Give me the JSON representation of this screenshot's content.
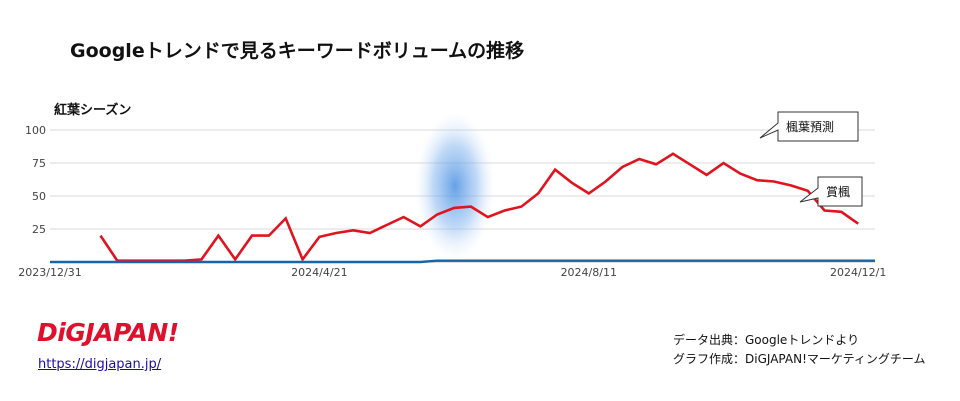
{
  "title": "Googleトレンドで見るキーワードボリュームの推移",
  "subtitle": "紅葉シーズン",
  "logo_text": "DiGJAPAN!",
  "link_text": "https://digjapan.jp/",
  "credits": {
    "source": "データ出典：Googleトレンドより",
    "made_by": "グラフ作成：DiGJAPAN!マーケティングチーム"
  },
  "callouts": {
    "momiji_yosoku": "楓葉預測",
    "shoufuu": "賞楓"
  },
  "colors": {
    "series_red": "#e0141e",
    "series_blue": "#1565a8",
    "highlight": "#4a90e2"
  },
  "chart_data": {
    "type": "line",
    "x_tick_labels": [
      "2023/12/31",
      "2024/4/21",
      "2024/8/11",
      "2024/12/1"
    ],
    "y_tick_labels": [
      "25",
      "50",
      "75",
      "100"
    ],
    "ylim": [
      0,
      100
    ],
    "grid": true,
    "x_range": [
      0,
      49
    ],
    "x_ticks": [
      0,
      16,
      32,
      48
    ],
    "series": [
      {
        "name": "楓葉預測",
        "color": "#e0141e",
        "x": [
          3,
          4,
          5,
          6,
          7,
          8,
          9,
          10,
          11,
          12,
          13,
          14,
          15,
          16,
          17,
          18,
          19,
          20,
          21,
          22,
          23,
          24,
          25,
          26,
          27,
          28,
          29,
          30,
          31,
          32,
          33,
          34,
          35,
          36,
          37,
          38,
          39,
          40,
          41,
          42,
          43,
          44,
          45,
          46,
          47,
          48
        ],
        "values": [
          20,
          1,
          1,
          1,
          1,
          1,
          2,
          20,
          2,
          20,
          20,
          33,
          2,
          19,
          22,
          24,
          22,
          28,
          34,
          27,
          36,
          41,
          42,
          34,
          39,
          42,
          52,
          70,
          60,
          52,
          61,
          72,
          78,
          74,
          82,
          74,
          66,
          75,
          67,
          62,
          61,
          58,
          54,
          39,
          38,
          29
        ]
      },
      {
        "name": "賞楓",
        "color": "#1565a8",
        "x": [
          0,
          1,
          2,
          3,
          4,
          5,
          6,
          7,
          8,
          9,
          10,
          11,
          12,
          13,
          14,
          15,
          16,
          17,
          18,
          19,
          20,
          21,
          22,
          23,
          24,
          25,
          26,
          27,
          28,
          29,
          30,
          31,
          32,
          33,
          34,
          35,
          36,
          37,
          38,
          39,
          40,
          41,
          42,
          43,
          44,
          45,
          46,
          47,
          48,
          49
        ],
        "values": [
          0,
          0,
          0,
          0,
          0,
          0,
          0,
          0,
          0,
          0,
          0,
          0,
          0,
          0,
          0,
          0,
          0,
          0,
          0,
          0,
          0,
          0,
          0,
          1,
          1,
          1,
          1,
          1,
          1,
          1,
          1,
          1,
          1,
          1,
          1,
          1,
          1,
          1,
          1,
          1,
          1,
          1,
          1,
          1,
          1,
          1,
          1,
          1,
          1,
          1
        ]
      }
    ]
  }
}
